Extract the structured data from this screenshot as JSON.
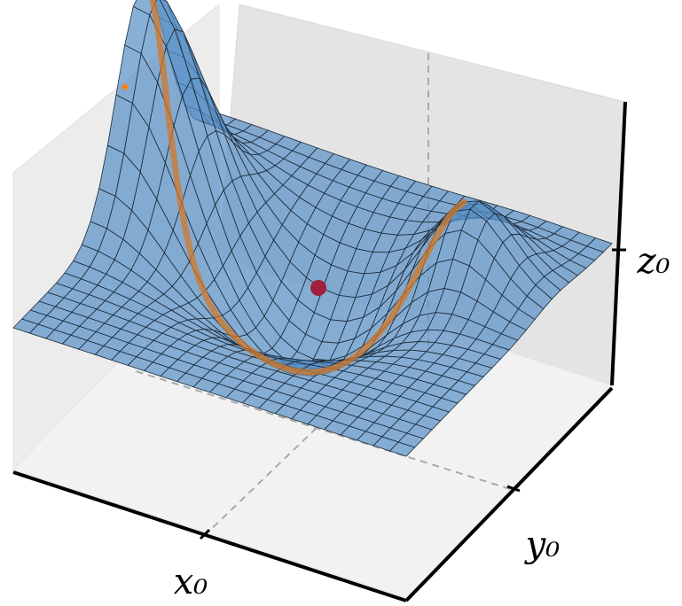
{
  "chart_data": {
    "type": "surface",
    "xlabel": "x₀",
    "ylabel": "y₀",
    "zlabel": "z₀"
  }
}
